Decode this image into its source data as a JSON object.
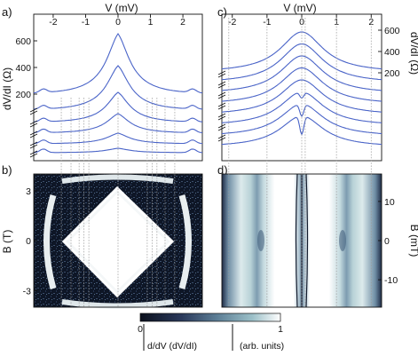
{
  "panels": {
    "a": {
      "letter": "a)",
      "xlabel": "V (mV)",
      "ylabel": "dV/dI (Ω)",
      "x_ticks": [
        "-2",
        "-1",
        "0",
        "1",
        "2"
      ],
      "y_ticks": [
        "200",
        "400",
        "600"
      ]
    },
    "b": {
      "letter": "b)",
      "ylabel": "B (T)",
      "y_ticks": [
        "3",
        "0",
        "-3"
      ]
    },
    "c": {
      "letter": "c)",
      "xlabel": "V (mV)",
      "ylabel": "dV/dI (Ω)",
      "x_ticks": [
        "-2",
        "-1",
        "0",
        "1",
        "2"
      ],
      "y_ticks": [
        "600",
        "400",
        "200"
      ]
    },
    "d": {
      "letter": "d)",
      "ylabel": "B (mT)",
      "y_ticks": [
        "10",
        "0",
        "-10"
      ]
    }
  },
  "colorbar": {
    "min_label": "0",
    "max_label": "1",
    "quantity": "d/dV (dV/dI)",
    "units": "(arb. units)",
    "colors": [
      "#0a0f1c",
      "#2b3a5c",
      "#5d7f96",
      "#9cc0c8",
      "#ffffff"
    ]
  },
  "chart_data": [
    {
      "type": "line",
      "panel": "a",
      "xlabel": "V (mV)",
      "ylabel": "dV/dI (Ω)",
      "xlim": [
        -2.6,
        2.6
      ],
      "ylim": [
        180,
        660
      ],
      "x_ticks": [
        -2,
        -1,
        0,
        1,
        2
      ],
      "y_ticks": [
        200,
        400,
        600
      ],
      "series": [
        {
          "peak": 650,
          "base": 200,
          "width": 0.55
        },
        {
          "peak": 0,
          "base": 0,
          "width": 0.6,
          "relative_amplitude": 0.75
        },
        {
          "peak": 0,
          "base": 0,
          "width": 0.6,
          "relative_amplitude": 0.5
        },
        {
          "peak": 0,
          "base": 0,
          "width": 0.6,
          "relative_amplitude": 0.3
        },
        {
          "peak": 0,
          "base": 0,
          "width": 0.6,
          "relative_amplitude": 0.15
        },
        {
          "peak": 0,
          "base": 0,
          "width": 0.6,
          "relative_amplitude": 0.06
        }
      ]
    },
    {
      "type": "heatmap",
      "panel": "b",
      "xlim": [
        -2.6,
        2.6
      ],
      "ylabel": "B (T)",
      "y_ticks": [
        3,
        0,
        -3
      ],
      "ylim": [
        -4,
        4
      ]
    },
    {
      "type": "line",
      "panel": "c",
      "xlabel": "V (mV)",
      "ylabel": "dV/dI (Ω)",
      "xlim": [
        -2.3,
        2.3
      ],
      "y_ticks": [
        600,
        400,
        200
      ],
      "series_count": 8
    },
    {
      "type": "heatmap",
      "panel": "d",
      "xlim": [
        -2.3,
        2.3
      ],
      "ylabel": "B (mT)",
      "y_ticks": [
        10,
        0,
        -10
      ],
      "ylim": [
        -17,
        17
      ]
    }
  ]
}
